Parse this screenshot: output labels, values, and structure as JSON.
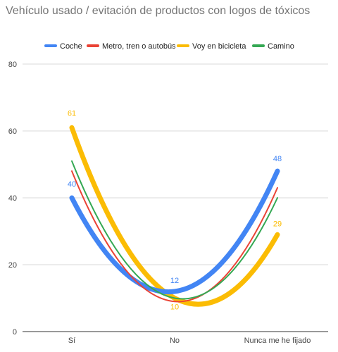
{
  "chart_data": {
    "type": "line",
    "title": "Vehículo usado / evitación de productos con logos de tóxicos",
    "categories": [
      "Sí",
      "No",
      "Nunca me he fijado"
    ],
    "ylim": [
      0,
      80
    ],
    "yticks": [
      0,
      20,
      40,
      60,
      80
    ],
    "grid": true,
    "legend_position": "top",
    "series": [
      {
        "name": "Coche",
        "color": "#4285F4",
        "values": [
          40,
          12,
          48
        ],
        "labels": [
          "40",
          "12",
          "48"
        ]
      },
      {
        "name": "Metro, tren o autobús",
        "color": "#EA4335",
        "values": [
          48,
          9,
          43
        ],
        "labels": [
          "",
          "",
          ""
        ]
      },
      {
        "name": "Voy en bicicleta",
        "color": "#FBBC04",
        "values": [
          61,
          10,
          29
        ],
        "labels": [
          "61",
          "10",
          "29"
        ]
      },
      {
        "name": "Camino",
        "color": "#34A853",
        "values": [
          51,
          10,
          40
        ],
        "labels": [
          "",
          "",
          ""
        ]
      }
    ]
  }
}
